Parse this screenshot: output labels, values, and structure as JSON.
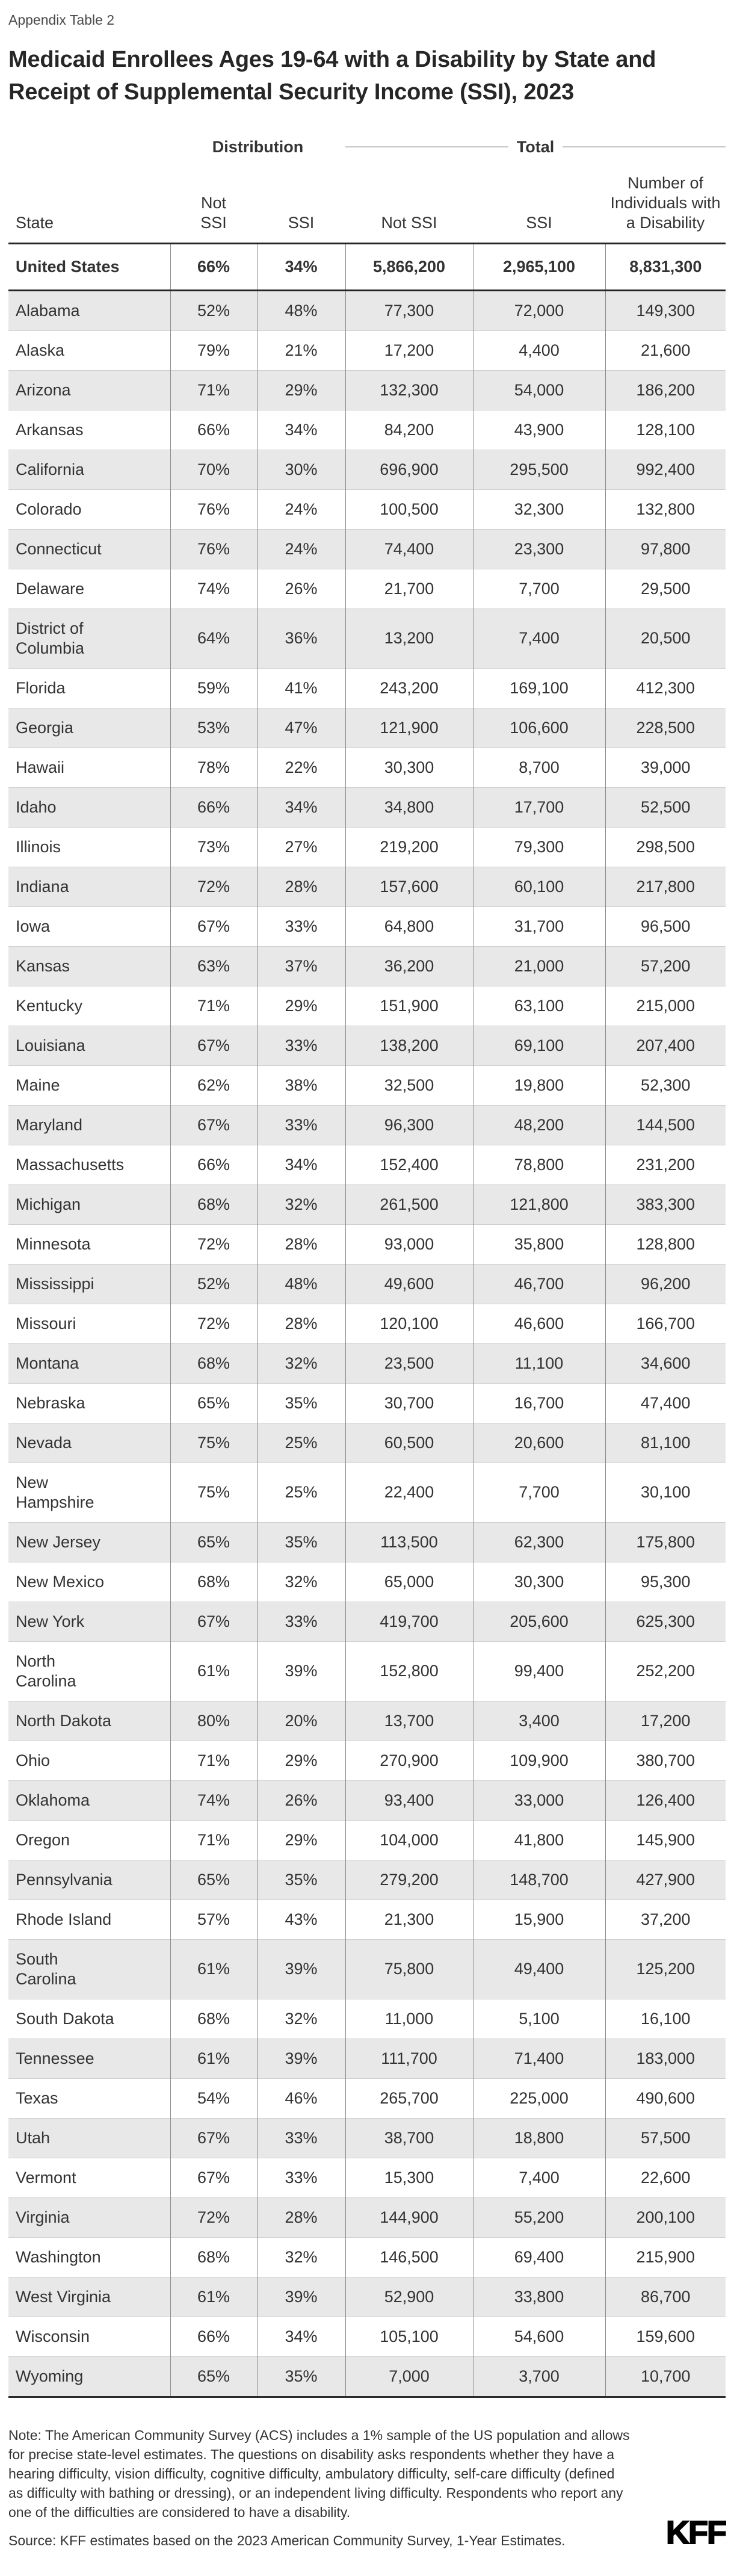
{
  "appendix_label": "Appendix Table 2",
  "title": "Medicaid Enrollees Ages 19-64 with a Disability by State and Receipt of Supplemental Security Income (SSI), 2023",
  "chart_data": {
    "type": "table",
    "group_headers": {
      "distribution": "Distribution",
      "total": "Total"
    },
    "columns": [
      "State",
      "Not SSI",
      "SSI",
      "Not SSI",
      "SSI",
      "Number of Individuals with a Disability"
    ],
    "us_row": [
      "United States",
      "66%",
      "34%",
      "5,866,200",
      "2,965,100",
      "8,831,300"
    ],
    "rows": [
      [
        "Alabama",
        "52%",
        "48%",
        "77,300",
        "72,000",
        "149,300"
      ],
      [
        "Alaska",
        "79%",
        "21%",
        "17,200",
        "4,400",
        "21,600"
      ],
      [
        "Arizona",
        "71%",
        "29%",
        "132,300",
        "54,000",
        "186,200"
      ],
      [
        "Arkansas",
        "66%",
        "34%",
        "84,200",
        "43,900",
        "128,100"
      ],
      [
        "California",
        "70%",
        "30%",
        "696,900",
        "295,500",
        "992,400"
      ],
      [
        "Colorado",
        "76%",
        "24%",
        "100,500",
        "32,300",
        "132,800"
      ],
      [
        "Connecticut",
        "76%",
        "24%",
        "74,400",
        "23,300",
        "97,800"
      ],
      [
        "Delaware",
        "74%",
        "26%",
        "21,700",
        "7,700",
        "29,500"
      ],
      [
        "District of Columbia",
        "64%",
        "36%",
        "13,200",
        "7,400",
        "20,500"
      ],
      [
        "Florida",
        "59%",
        "41%",
        "243,200",
        "169,100",
        "412,300"
      ],
      [
        "Georgia",
        "53%",
        "47%",
        "121,900",
        "106,600",
        "228,500"
      ],
      [
        "Hawaii",
        "78%",
        "22%",
        "30,300",
        "8,700",
        "39,000"
      ],
      [
        "Idaho",
        "66%",
        "34%",
        "34,800",
        "17,700",
        "52,500"
      ],
      [
        "Illinois",
        "73%",
        "27%",
        "219,200",
        "79,300",
        "298,500"
      ],
      [
        "Indiana",
        "72%",
        "28%",
        "157,600",
        "60,100",
        "217,800"
      ],
      [
        "Iowa",
        "67%",
        "33%",
        "64,800",
        "31,700",
        "96,500"
      ],
      [
        "Kansas",
        "63%",
        "37%",
        "36,200",
        "21,000",
        "57,200"
      ],
      [
        "Kentucky",
        "71%",
        "29%",
        "151,900",
        "63,100",
        "215,000"
      ],
      [
        "Louisiana",
        "67%",
        "33%",
        "138,200",
        "69,100",
        "207,400"
      ],
      [
        "Maine",
        "62%",
        "38%",
        "32,500",
        "19,800",
        "52,300"
      ],
      [
        "Maryland",
        "67%",
        "33%",
        "96,300",
        "48,200",
        "144,500"
      ],
      [
        "Massachusetts",
        "66%",
        "34%",
        "152,400",
        "78,800",
        "231,200"
      ],
      [
        "Michigan",
        "68%",
        "32%",
        "261,500",
        "121,800",
        "383,300"
      ],
      [
        "Minnesota",
        "72%",
        "28%",
        "93,000",
        "35,800",
        "128,800"
      ],
      [
        "Mississippi",
        "52%",
        "48%",
        "49,600",
        "46,700",
        "96,200"
      ],
      [
        "Missouri",
        "72%",
        "28%",
        "120,100",
        "46,600",
        "166,700"
      ],
      [
        "Montana",
        "68%",
        "32%",
        "23,500",
        "11,100",
        "34,600"
      ],
      [
        "Nebraska",
        "65%",
        "35%",
        "30,700",
        "16,700",
        "47,400"
      ],
      [
        "Nevada",
        "75%",
        "25%",
        "60,500",
        "20,600",
        "81,100"
      ],
      [
        "New Hampshire",
        "75%",
        "25%",
        "22,400",
        "7,700",
        "30,100"
      ],
      [
        "New Jersey",
        "65%",
        "35%",
        "113,500",
        "62,300",
        "175,800"
      ],
      [
        "New Mexico",
        "68%",
        "32%",
        "65,000",
        "30,300",
        "95,300"
      ],
      [
        "New York",
        "67%",
        "33%",
        "419,700",
        "205,600",
        "625,300"
      ],
      [
        "North Carolina",
        "61%",
        "39%",
        "152,800",
        "99,400",
        "252,200"
      ],
      [
        "North Dakota",
        "80%",
        "20%",
        "13,700",
        "3,400",
        "17,200"
      ],
      [
        "Ohio",
        "71%",
        "29%",
        "270,900",
        "109,900",
        "380,700"
      ],
      [
        "Oklahoma",
        "74%",
        "26%",
        "93,400",
        "33,000",
        "126,400"
      ],
      [
        "Oregon",
        "71%",
        "29%",
        "104,000",
        "41,800",
        "145,900"
      ],
      [
        "Pennsylvania",
        "65%",
        "35%",
        "279,200",
        "148,700",
        "427,900"
      ],
      [
        "Rhode Island",
        "57%",
        "43%",
        "21,300",
        "15,900",
        "37,200"
      ],
      [
        "South Carolina",
        "61%",
        "39%",
        "75,800",
        "49,400",
        "125,200"
      ],
      [
        "South Dakota",
        "68%",
        "32%",
        "11,000",
        "5,100",
        "16,100"
      ],
      [
        "Tennessee",
        "61%",
        "39%",
        "111,700",
        "71,400",
        "183,000"
      ],
      [
        "Texas",
        "54%",
        "46%",
        "265,700",
        "225,000",
        "490,600"
      ],
      [
        "Utah",
        "67%",
        "33%",
        "38,700",
        "18,800",
        "57,500"
      ],
      [
        "Vermont",
        "67%",
        "33%",
        "15,300",
        "7,400",
        "22,600"
      ],
      [
        "Virginia",
        "72%",
        "28%",
        "144,900",
        "55,200",
        "200,100"
      ],
      [
        "Washington",
        "68%",
        "32%",
        "146,500",
        "69,400",
        "215,900"
      ],
      [
        "West Virginia",
        "61%",
        "39%",
        "52,900",
        "33,800",
        "86,700"
      ],
      [
        "Wisconsin",
        "66%",
        "34%",
        "105,100",
        "54,600",
        "159,600"
      ],
      [
        "Wyoming",
        "65%",
        "35%",
        "7,000",
        "3,700",
        "10,700"
      ]
    ],
    "colors": {
      "stripe": "#e8e8e8",
      "thick_rule": "#262626",
      "column_rule": "#8c8c8c",
      "row_rule": "#cfcfcf",
      "total_line": "#c7c7c7"
    }
  },
  "note": "Note: The American Community Survey (ACS) includes a 1% sample of the US population and allows for precise state-level estimates. The questions on disability asks respondents whether they have a hearing difficulty, vision difficulty, cognitive difficulty, ambulatory difficulty, self-care difficulty (defined as difficulty with bathing or dressing), or an independent living difficulty. Respondents who report any one of the difficulties are considered to have a disability.",
  "source": "Source: KFF estimates based on the 2023 American Community Survey, 1-Year Estimates.",
  "logo_text": "KFF"
}
